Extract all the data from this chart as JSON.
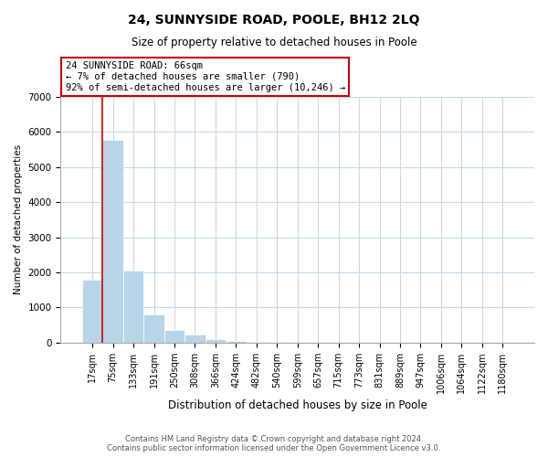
{
  "title": "24, SUNNYSIDE ROAD, POOLE, BH12 2LQ",
  "subtitle": "Size of property relative to detached houses in Poole",
  "xlabel": "Distribution of detached houses by size in Poole",
  "ylabel": "Number of detached properties",
  "bin_labels": [
    "17sqm",
    "75sqm",
    "133sqm",
    "191sqm",
    "250sqm",
    "308sqm",
    "366sqm",
    "424sqm",
    "482sqm",
    "540sqm",
    "599sqm",
    "657sqm",
    "715sqm",
    "773sqm",
    "831sqm",
    "889sqm",
    "947sqm",
    "1006sqm",
    "1064sqm",
    "1122sqm",
    "1180sqm"
  ],
  "bar_heights": [
    1780,
    5780,
    2060,
    810,
    360,
    220,
    110,
    60,
    30,
    10,
    5,
    2,
    1,
    0,
    0,
    0,
    0,
    0,
    0,
    0,
    0
  ],
  "bar_color": "#b8d4e8",
  "annotation_title": "24 SUNNYSIDE ROAD: 66sqm",
  "annotation_line1": "← 7% of detached houses are smaller (790)",
  "annotation_line2": "92% of semi-detached houses are larger (10,246) →",
  "annotation_box_color": "#ffffff",
  "annotation_box_edge": "#cc0000",
  "line_color": "#cc0000",
  "ylim": [
    0,
    7000
  ],
  "yticks": [
    0,
    1000,
    2000,
    3000,
    4000,
    5000,
    6000,
    7000
  ],
  "footer_line1": "Contains HM Land Registry data © Crown copyright and database right 2024.",
  "footer_line2": "Contains public sector information licensed under the Open Government Licence v3.0.",
  "bg_color": "#ffffff",
  "grid_color": "#c8daea",
  "title_fontsize": 10,
  "subtitle_fontsize": 8.5,
  "xlabel_fontsize": 8.5,
  "ylabel_fontsize": 7.5,
  "tick_fontsize": 7,
  "ytick_fontsize": 7.5,
  "annot_fontsize": 7.5,
  "footer_fontsize": 6
}
